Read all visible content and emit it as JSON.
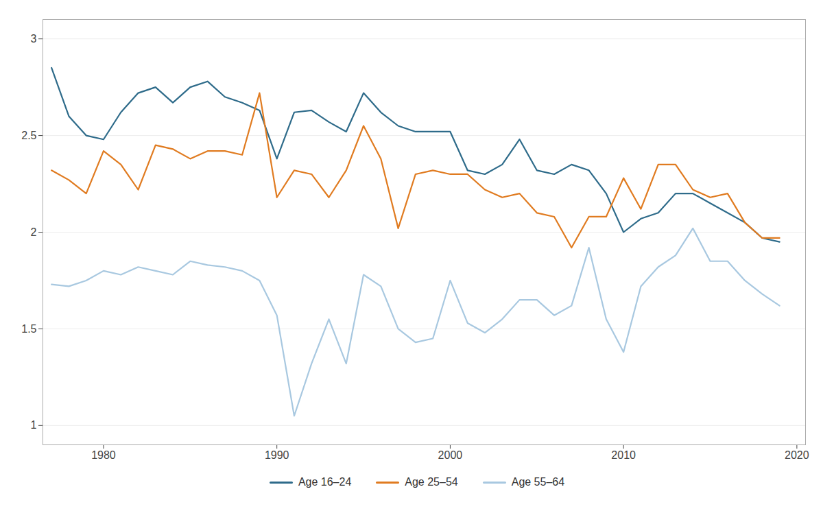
{
  "chart_data": {
    "type": "line",
    "x": [
      1977,
      1978,
      1979,
      1980,
      1981,
      1982,
      1983,
      1984,
      1985,
      1986,
      1987,
      1988,
      1989,
      1990,
      1991,
      1992,
      1993,
      1994,
      1995,
      1996,
      1997,
      1998,
      1999,
      2000,
      2001,
      2002,
      2003,
      2004,
      2005,
      2006,
      2007,
      2008,
      2009,
      2010,
      2011,
      2012,
      2013,
      2014,
      2015,
      2016,
      2017,
      2018,
      2019
    ],
    "series": [
      {
        "name": "Age 16–24",
        "color": "#2e6b8a",
        "values": [
          2.85,
          2.6,
          2.5,
          2.48,
          2.62,
          2.72,
          2.75,
          2.67,
          2.75,
          2.78,
          2.7,
          2.67,
          2.63,
          2.38,
          2.62,
          2.63,
          2.57,
          2.52,
          2.72,
          2.62,
          2.55,
          2.52,
          2.52,
          2.52,
          2.32,
          2.3,
          2.35,
          2.48,
          2.32,
          2.3,
          2.35,
          2.32,
          2.2,
          2.0,
          2.07,
          2.1,
          2.2,
          2.2,
          2.15,
          2.1,
          2.05,
          1.97,
          1.95
        ]
      },
      {
        "name": "Age 25–54",
        "color": "#e07b20",
        "values": [
          2.32,
          2.27,
          2.2,
          2.42,
          2.35,
          2.22,
          2.45,
          2.43,
          2.38,
          2.42,
          2.42,
          2.4,
          2.72,
          2.18,
          2.32,
          2.3,
          2.18,
          2.32,
          2.55,
          2.38,
          2.02,
          2.3,
          2.32,
          2.3,
          2.3,
          2.22,
          2.18,
          2.2,
          2.1,
          2.08,
          1.92,
          2.08,
          2.08,
          2.28,
          2.12,
          2.35,
          2.35,
          2.22,
          2.18,
          2.2,
          2.05,
          1.97,
          1.97
        ]
      },
      {
        "name": "Age 55–64",
        "color": "#a8c8e0",
        "values": [
          1.73,
          1.72,
          1.75,
          1.8,
          1.78,
          1.82,
          1.8,
          1.78,
          1.85,
          1.83,
          1.82,
          1.8,
          1.75,
          1.57,
          1.05,
          1.32,
          1.55,
          1.32,
          1.78,
          1.72,
          1.5,
          1.43,
          1.45,
          1.75,
          1.53,
          1.48,
          1.55,
          1.65,
          1.65,
          1.57,
          1.62,
          1.92,
          1.55,
          1.38,
          1.72,
          1.82,
          1.88,
          2.02,
          1.85,
          1.85,
          1.75,
          1.68,
          1.62
        ]
      }
    ],
    "xlim": [
      1976.5,
      2020.5
    ],
    "xticks": [
      1980,
      1990,
      2000,
      2010,
      2020
    ],
    "ylim": [
      0.9,
      3.1
    ],
    "yticks": [
      1,
      1.5,
      2,
      2.5,
      3
    ],
    "grid": true,
    "legend": "bottom"
  }
}
